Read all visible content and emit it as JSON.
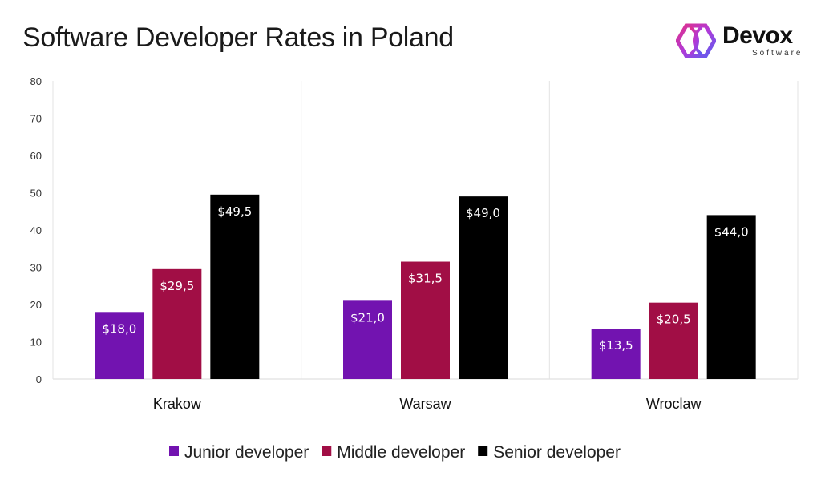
{
  "title": "Software Developer Rates in Poland",
  "logo": {
    "name": "Devox",
    "subtitle": "Software"
  },
  "chart_data": {
    "type": "bar",
    "title": "Software Developer Rates in Poland",
    "categories": [
      "Krakow",
      "Warsaw",
      "Wroclaw"
    ],
    "series": [
      {
        "name": "Junior developer",
        "color": "#7213b0",
        "values": [
          18.0,
          21.0,
          13.5
        ],
        "labels": [
          "$18,0",
          "$21,0",
          "$13,5"
        ]
      },
      {
        "name": "Middle developer",
        "color": "#a10e45",
        "values": [
          29.5,
          31.5,
          20.5
        ],
        "labels": [
          "$29,5",
          "$31,5",
          "$20,5"
        ]
      },
      {
        "name": "Senior developer",
        "color": "#000000",
        "values": [
          49.5,
          49.0,
          44.0
        ],
        "labels": [
          "$49,5",
          "$49,0",
          "$44,0"
        ]
      }
    ],
    "ylim": [
      0,
      80
    ],
    "yticks": [
      0,
      10,
      20,
      30,
      40,
      50,
      60,
      70,
      80
    ],
    "xlabel": "",
    "ylabel": "",
    "grid": "vertical category separators",
    "legend": "bottom"
  }
}
